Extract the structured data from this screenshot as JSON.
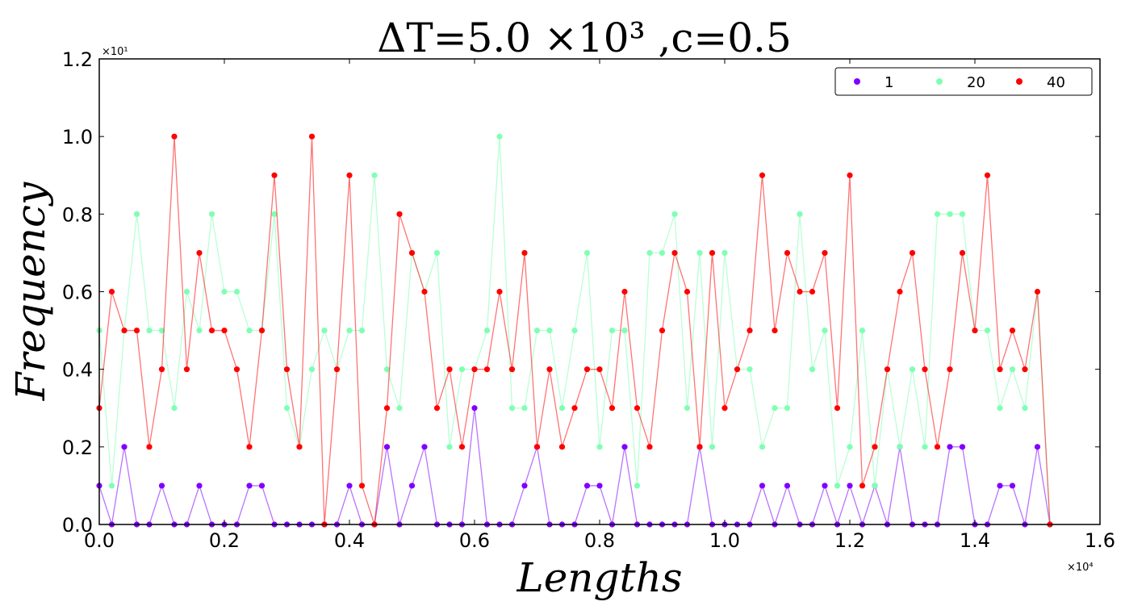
{
  "chart_data": {
    "type": "line",
    "title": "ΔT=5.0 ×10³ ,c=0.5",
    "xlabel": "Lengths",
    "ylabel": "Frequency",
    "x_exponent_label": "×10⁴",
    "y_exponent_label": "×10¹",
    "xlim": [
      0,
      16000
    ],
    "ylim": [
      0,
      12
    ],
    "xticks": [
      0,
      2000,
      4000,
      6000,
      8000,
      10000,
      12000,
      14000,
      16000
    ],
    "xtick_labels": [
      "0.0",
      "0.2",
      "0.4",
      "0.6",
      "0.8",
      "1.0",
      "1.2",
      "1.4",
      "1.6"
    ],
    "yticks": [
      0,
      2,
      4,
      6,
      8,
      10,
      12
    ],
    "ytick_labels": [
      "0.0",
      "0.2",
      "0.4",
      "0.6",
      "0.8",
      "1.0",
      "1.2"
    ],
    "grid": false,
    "legend_position": "top-right",
    "x": [
      0,
      200,
      400,
      600,
      800,
      1000,
      1200,
      1400,
      1600,
      1800,
      2000,
      2200,
      2400,
      2600,
      2800,
      3000,
      3200,
      3400,
      3600,
      3800,
      4000,
      4200,
      4400,
      4600,
      4800,
      5000,
      5200,
      5400,
      5600,
      5800,
      6000,
      6200,
      6400,
      6600,
      6800,
      7000,
      7200,
      7400,
      7600,
      7800,
      8000,
      8200,
      8400,
      8600,
      8800,
      9000,
      9200,
      9400,
      9600,
      9800,
      10000,
      10200,
      10400,
      10600,
      10800,
      11000,
      11200,
      11400,
      11600,
      11800,
      12000,
      12200,
      12400,
      12600,
      12800,
      13000,
      13200,
      13400,
      13600,
      13800,
      14000,
      14200,
      14400,
      14600,
      14800,
      15000,
      15200
    ],
    "series": [
      {
        "name": "1",
        "color": "#8000ff",
        "values": [
          1,
          0,
          2,
          0,
          0,
          1,
          0,
          0,
          1,
          0,
          0,
          0,
          1,
          1,
          0,
          0,
          0,
          0,
          0,
          0,
          1,
          0,
          0,
          2,
          0,
          1,
          2,
          0,
          0,
          0,
          3,
          0,
          0,
          0,
          1,
          2,
          0,
          0,
          0,
          1,
          1,
          0,
          2,
          0,
          0,
          0,
          0,
          0,
          2,
          0,
          0,
          0,
          0,
          1,
          0,
          1,
          0,
          0,
          1,
          0,
          1,
          0,
          1,
          0,
          2,
          0,
          0,
          0,
          2,
          2,
          0,
          0,
          1,
          1,
          0,
          2,
          0
        ]
      },
      {
        "name": "20",
        "color": "#80ffb4",
        "values": [
          5,
          1,
          5,
          8,
          5,
          5,
          3,
          6,
          5,
          8,
          6,
          6,
          5,
          5,
          8,
          3,
          2,
          4,
          5,
          4,
          5,
          5,
          9,
          4,
          3,
          7,
          6,
          7,
          2,
          4,
          4,
          5,
          10,
          3,
          3,
          5,
          5,
          3,
          5,
          7,
          2,
          5,
          5,
          1,
          7,
          7,
          8,
          3,
          7,
          2,
          7,
          4,
          4,
          2,
          3,
          3,
          8,
          4,
          5,
          1,
          2,
          5,
          1,
          4,
          2,
          4,
          2,
          8,
          8,
          8,
          5,
          5,
          3,
          4,
          3,
          6,
          0
        ]
      },
      {
        "name": "40",
        "color": "#ff0000",
        "values": [
          3,
          6,
          5,
          5,
          2,
          4,
          10,
          4,
          7,
          5,
          5,
          4,
          2,
          5,
          9,
          4,
          2,
          10,
          0,
          4,
          9,
          1,
          0,
          3,
          8,
          7,
          6,
          3,
          4,
          2,
          4,
          4,
          6,
          4,
          7,
          2,
          4,
          2,
          3,
          4,
          4,
          3,
          6,
          3,
          2,
          5,
          7,
          6,
          2,
          7,
          3,
          4,
          5,
          9,
          5,
          7,
          6,
          6,
          7,
          3,
          9,
          1,
          2,
          4,
          6,
          7,
          4,
          2,
          4,
          7,
          5,
          9,
          4,
          5,
          4,
          6,
          0
        ]
      }
    ]
  }
}
